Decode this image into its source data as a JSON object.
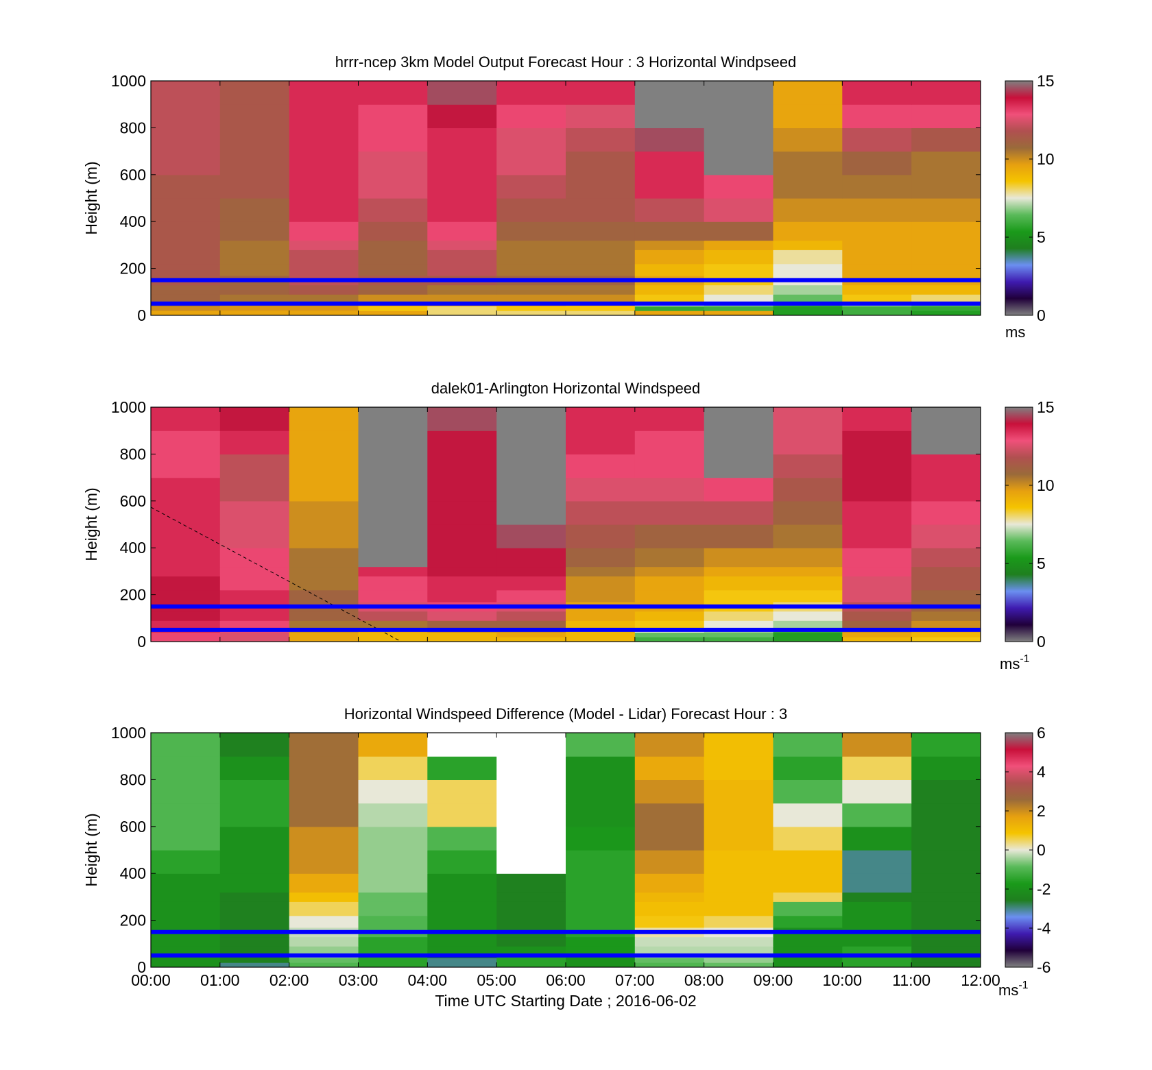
{
  "colormaps": {
    "speed": [
      "#808080",
      "#20003a",
      "#3f1bb0",
      "#6b8ff0",
      "#1f7f1f",
      "#1a9a1a",
      "#5aba5a",
      "#e8e8d8",
      "#f5c400",
      "#e6a010",
      "#9a6a3a",
      "#b05050",
      "#f0507a",
      "#c8103a",
      "#808080"
    ],
    "diff": [
      "#808080",
      "#20003a",
      "#3f1bb0",
      "#6b8ff0",
      "#1f7f1f",
      "#1a9a1a",
      "#5aba5a",
      "#e8e8d8",
      "#f5c400",
      "#e6a010",
      "#9a6a3a",
      "#b05050",
      "#f0507a",
      "#c8103a",
      "#808080"
    ]
  },
  "reference_lines": {
    "color": "#0000ff",
    "heights_m": [
      150,
      50
    ]
  },
  "shared_x": {
    "ticks": [
      "00:00",
      "01:00",
      "02:00",
      "03:00",
      "04:00",
      "05:00",
      "06:00",
      "07:00",
      "08:00",
      "09:00",
      "10:00",
      "11:00",
      "12:00"
    ],
    "xlabel": "Time UTC  Starting Date ; 2016-06-02"
  },
  "chart_data": [
    {
      "type": "heatmap",
      "title": "hrrr-ncep 3km Model Output   Forecast Hour : 3 Horizontal Windpseed",
      "ylabel": "Height (m)",
      "ylim": [
        0,
        1000
      ],
      "yticks": [
        "0",
        "200",
        "400",
        "600",
        "800",
        "1000"
      ],
      "x_range_hours": [
        0,
        12
      ],
      "colorbar": {
        "range": [
          0,
          15
        ],
        "ticks": [
          "0",
          "5",
          "10",
          "15"
        ],
        "unit": "ms"
      },
      "columns_hours": [
        0,
        1,
        2,
        3,
        4,
        5,
        6,
        7,
        8,
        9,
        10,
        11
      ],
      "level_bounds_m": [
        0,
        20,
        40,
        60,
        90,
        130,
        170,
        220,
        280,
        320,
        400,
        500,
        600,
        700,
        800,
        900,
        1000
      ],
      "values": [
        [
          9.5,
          9.5,
          9.5,
          9.5,
          8.0,
          8.0,
          8.0,
          9.5,
          9.5,
          5.5,
          6.0,
          5.5
        ],
        [
          10.0,
          9.8,
          9.8,
          8.5,
          8.0,
          8.5,
          8.5,
          5.8,
          6.0,
          5.5,
          6.0,
          5.8
        ],
        [
          10.5,
          10.0,
          10.0,
          9.5,
          9.5,
          9.5,
          9.0,
          7.5,
          7.0,
          6.0,
          7.0,
          6.5
        ],
        [
          11.0,
          10.5,
          10.5,
          10.0,
          10.0,
          10.0,
          10.0,
          8.5,
          7.5,
          6.5,
          8.5,
          8.0
        ],
        [
          11.0,
          11.0,
          11.5,
          11.0,
          10.5,
          10.5,
          10.5,
          9.0,
          8.0,
          7.0,
          9.0,
          9.0
        ],
        [
          11.5,
          11.0,
          12.0,
          11.5,
          11.5,
          11.0,
          11.0,
          9.5,
          8.5,
          7.5,
          9.5,
          9.5
        ],
        [
          11.5,
          10.5,
          12.0,
          11.0,
          12.0,
          10.5,
          10.5,
          9.0,
          8.5,
          7.5,
          9.5,
          9.5
        ],
        [
          11.5,
          10.5,
          12.0,
          11.0,
          12.0,
          10.5,
          10.5,
          9.5,
          9.0,
          7.8,
          9.5,
          9.5
        ],
        [
          11.5,
          10.5,
          12.5,
          11.0,
          12.5,
          10.5,
          10.5,
          10.0,
          9.5,
          9.0,
          9.5,
          9.5
        ],
        [
          11.5,
          11.0,
          13.0,
          11.5,
          13.0,
          11.0,
          11.0,
          11.0,
          11.0,
          9.5,
          9.5,
          9.5
        ],
        [
          11.5,
          11.0,
          13.5,
          12.0,
          13.5,
          11.5,
          11.5,
          12.0,
          12.5,
          10.0,
          10.0,
          10.0
        ],
        [
          11.5,
          11.5,
          13.5,
          12.5,
          13.5,
          12.0,
          11.5,
          13.5,
          13.0,
          10.5,
          10.5,
          10.5
        ],
        [
          12.0,
          11.5,
          13.5,
          12.5,
          13.5,
          12.5,
          11.5,
          13.5,
          15.5,
          10.5,
          11.0,
          10.5
        ],
        [
          12.0,
          11.5,
          13.5,
          13.0,
          13.5,
          12.5,
          12.0,
          14.5,
          15.5,
          10.0,
          12.0,
          11.5
        ],
        [
          12.0,
          11.5,
          13.5,
          13.0,
          14.0,
          13.0,
          12.5,
          15.5,
          15.5,
          9.5,
          13.0,
          13.0
        ],
        [
          12.0,
          11.5,
          13.5,
          13.5,
          14.5,
          13.5,
          13.5,
          15.5,
          15.5,
          9.5,
          13.5,
          13.5
        ]
      ]
    },
    {
      "type": "heatmap",
      "title": "dalek01-Arlington  Horizontal Windspeed",
      "ylabel": "Height (m)",
      "ylim": [
        0,
        1000
      ],
      "yticks": [
        "0",
        "200",
        "400",
        "600",
        "800",
        "1000"
      ],
      "x_range_hours": [
        0,
        12
      ],
      "colorbar": {
        "range": [
          0,
          15
        ],
        "ticks": [
          "0",
          "5",
          "10",
          "15"
        ],
        "unit": "ms",
        "unit_exponent": "-1"
      },
      "columns_hours": [
        0,
        1,
        2,
        3,
        4,
        5,
        6,
        7,
        8,
        9,
        10,
        11
      ],
      "level_bounds_m": [
        0,
        20,
        40,
        60,
        90,
        130,
        170,
        220,
        280,
        320,
        400,
        500,
        600,
        700,
        800,
        900,
        1000
      ],
      "values": [
        [
          13.0,
          12.5,
          9.5,
          9.0,
          9.0,
          9.0,
          9.0,
          6.0,
          6.0,
          5.5,
          9.0,
          8.5
        ],
        [
          13.0,
          12.5,
          9.5,
          9.0,
          9.0,
          9.5,
          9.0,
          6.5,
          6.5,
          5.5,
          9.5,
          9.0
        ],
        [
          13.5,
          13.0,
          10.0,
          9.5,
          10.0,
          10.0,
          9.0,
          7.5,
          7.0,
          6.0,
          10.0,
          9.5
        ],
        [
          13.5,
          13.0,
          10.5,
          10.5,
          11.0,
          11.0,
          9.0,
          8.5,
          7.5,
          7.0,
          11.0,
          10.0
        ],
        [
          14.0,
          13.5,
          11.0,
          12.0,
          12.5,
          12.0,
          9.5,
          9.0,
          8.0,
          7.5,
          11.5,
          10.5
        ],
        [
          14.0,
          13.5,
          11.0,
          12.5,
          13.0,
          12.5,
          9.5,
          9.5,
          8.5,
          8.0,
          12.0,
          11.0
        ],
        [
          14.0,
          13.5,
          11.0,
          13.0,
          13.5,
          13.0,
          10.0,
          9.5,
          8.5,
          8.5,
          12.5,
          11.0
        ],
        [
          14.0,
          13.0,
          10.5,
          13.0,
          13.5,
          13.5,
          10.0,
          9.5,
          9.0,
          9.0,
          12.5,
          11.5
        ],
        [
          13.5,
          13.0,
          10.5,
          13.5,
          14.0,
          14.0,
          10.5,
          10.0,
          9.5,
          9.5,
          13.0,
          11.5
        ],
        [
          13.5,
          13.0,
          10.5,
          15.5,
          14.0,
          14.0,
          11.0,
          10.5,
          10.0,
          10.0,
          13.0,
          12.0
        ],
        [
          13.5,
          12.5,
          10.0,
          15.5,
          14.0,
          14.5,
          11.5,
          11.0,
          11.0,
          10.5,
          13.5,
          12.5
        ],
        [
          13.5,
          12.5,
          10.0,
          15.5,
          14.0,
          15.0,
          12.0,
          12.0,
          12.0,
          11.0,
          13.5,
          13.0
        ],
        [
          13.5,
          12.0,
          9.5,
          15.5,
          14.0,
          15.0,
          12.5,
          12.5,
          13.0,
          11.5,
          14.0,
          13.5
        ],
        [
          13.0,
          12.0,
          9.5,
          15.5,
          14.0,
          15.0,
          13.0,
          13.0,
          15.5,
          12.0,
          14.0,
          13.5
        ],
        [
          13.0,
          13.5,
          9.5,
          15.5,
          14.0,
          15.0,
          13.5,
          13.0,
          15.5,
          12.5,
          14.0,
          15.5
        ],
        [
          13.5,
          14.0,
          9.5,
          15.5,
          14.5,
          15.0,
          13.5,
          13.5,
          15.5,
          12.5,
          13.5,
          15.5
        ]
      ]
    },
    {
      "type": "heatmap",
      "title": "Horizontal Windspeed Difference (Model - Lidar) Forecast Hour : 3",
      "ylabel": "Height (m)",
      "ylim": [
        0,
        1000
      ],
      "yticks": [
        "0",
        "200",
        "400",
        "600",
        "800",
        "1000"
      ],
      "x_range_hours": [
        0,
        12
      ],
      "colorbar": {
        "range": [
          -6,
          6
        ],
        "ticks": [
          "-6",
          "-4",
          "-2",
          "0",
          "2",
          "4",
          "6"
        ],
        "unit": "ms",
        "unit_exponent": "-1"
      },
      "columns_hours": [
        0,
        1,
        2,
        3,
        4,
        5,
        6,
        7,
        8,
        9,
        10,
        11
      ],
      "level_bounds_m": [
        0,
        20,
        40,
        60,
        90,
        130,
        170,
        220,
        280,
        320,
        400,
        500,
        600,
        700,
        800,
        900,
        1000
      ],
      "values": [
        [
          -2.0,
          -3.0,
          -1.0,
          -1.5,
          -3.0,
          -1.5,
          -2.0,
          -1.0,
          -0.8,
          -2.0,
          -1.5,
          -2.5
        ],
        [
          -2.0,
          -2.5,
          -0.8,
          -1.5,
          -3.0,
          -1.5,
          -2.0,
          -0.8,
          -0.5,
          -2.0,
          -1.5,
          -2.5
        ],
        [
          -2.0,
          -2.5,
          -0.5,
          -1.5,
          -2.5,
          -1.5,
          -1.8,
          -0.5,
          -0.5,
          -2.0,
          -1.5,
          -2.5
        ],
        [
          -2.0,
          -2.5,
          -0.5,
          -1.5,
          -2.0,
          -2.0,
          -1.8,
          -0.3,
          -0.3,
          -2.0,
          -1.5,
          -2.5
        ],
        [
          -2.0,
          -2.5,
          -0.3,
          -1.5,
          -2.0,
          -2.5,
          -1.8,
          -0.2,
          -0.2,
          -2.0,
          -2.0,
          -2.5
        ],
        [
          -2.0,
          -2.5,
          -0.2,
          -1.0,
          -2.0,
          -2.5,
          -1.5,
          0.2,
          0.0,
          -2.0,
          -2.0,
          -2.5
        ],
        [
          -2.0,
          -2.5,
          0.0,
          -1.0,
          -2.0,
          -2.5,
          -1.5,
          0.8,
          0.5,
          -1.5,
          -2.0,
          -2.5
        ],
        [
          -2.0,
          -2.5,
          0.5,
          -0.8,
          -2.0,
          -2.5,
          -1.5,
          1.0,
          1.0,
          -1.0,
          -2.0,
          -2.5
        ],
        [
          -2.0,
          -2.5,
          1.0,
          -0.8,
          -2.0,
          -2.5,
          -1.5,
          1.2,
          1.0,
          0.5,
          -2.5,
          -2.5
        ],
        [
          -2.0,
          -2.0,
          1.5,
          -0.5,
          -2.0,
          -2.5,
          -1.5,
          1.5,
          1.0,
          1.0,
          -3.0,
          -2.5
        ],
        [
          -1.5,
          -2.0,
          2.0,
          -0.5,
          -1.5,
          null,
          -1.5,
          2.0,
          1.0,
          1.0,
          -3.0,
          -2.5
        ],
        [
          -1.0,
          -2.0,
          2.0,
          -0.5,
          -1.0,
          null,
          -1.8,
          2.5,
          1.2,
          0.5,
          -2.0,
          -2.5
        ],
        [
          -1.0,
          -1.5,
          2.5,
          -0.3,
          0.5,
          null,
          -2.0,
          2.5,
          1.2,
          0.0,
          -1.0,
          -2.5
        ],
        [
          -1.0,
          -1.5,
          2.5,
          0.0,
          0.5,
          null,
          -2.0,
          2.0,
          1.2,
          -1.0,
          0.0,
          -2.5
        ],
        [
          -1.0,
          -2.0,
          2.5,
          0.5,
          -1.5,
          null,
          -2.0,
          1.5,
          1.0,
          -1.5,
          0.5,
          -2.0
        ],
        [
          -1.0,
          -2.5,
          2.5,
          1.5,
          null,
          null,
          -1.0,
          2.0,
          1.0,
          -1.0,
          2.0,
          -1.5
        ]
      ]
    }
  ]
}
